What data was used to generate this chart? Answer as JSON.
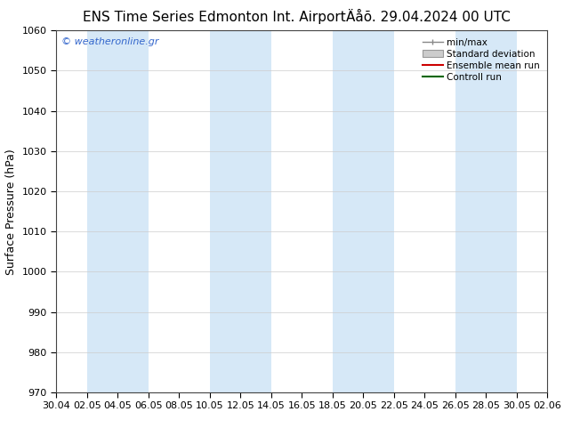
{
  "title_left": "ENS Time Series Edmonton Int. Airport",
  "title_right": "Äåõ. 29.04.2024 00 UTC",
  "ylabel": "Surface Pressure (hPa)",
  "ylim": [
    970,
    1060
  ],
  "yticks": [
    970,
    980,
    990,
    1000,
    1010,
    1020,
    1030,
    1040,
    1050,
    1060
  ],
  "x_labels": [
    "30.04",
    "02.05",
    "04.05",
    "06.05",
    "08.05",
    "10.05",
    "12.05",
    "14.05",
    "16.05",
    "18.05",
    "20.05",
    "22.05",
    "24.05",
    "26.05",
    "28.05",
    "30.05",
    "02.06"
  ],
  "background_color": "#ffffff",
  "plot_bg_color": "#ffffff",
  "band_color": "#d6e8f7",
  "band_color2": "#e8f2fb",
  "watermark": "© weatheronline.gr",
  "watermark_color": "#3366cc",
  "legend_labels": [
    "min/max",
    "Standard deviation",
    "Ensemble mean run",
    "Controll run"
  ],
  "color_minmax": "#888888",
  "color_stddev": "#aaaaaa",
  "color_mean": "#cc0000",
  "color_control": "#006600",
  "title_fontsize": 11,
  "tick_fontsize": 8,
  "ylabel_fontsize": 9,
  "watermark_fontsize": 8
}
